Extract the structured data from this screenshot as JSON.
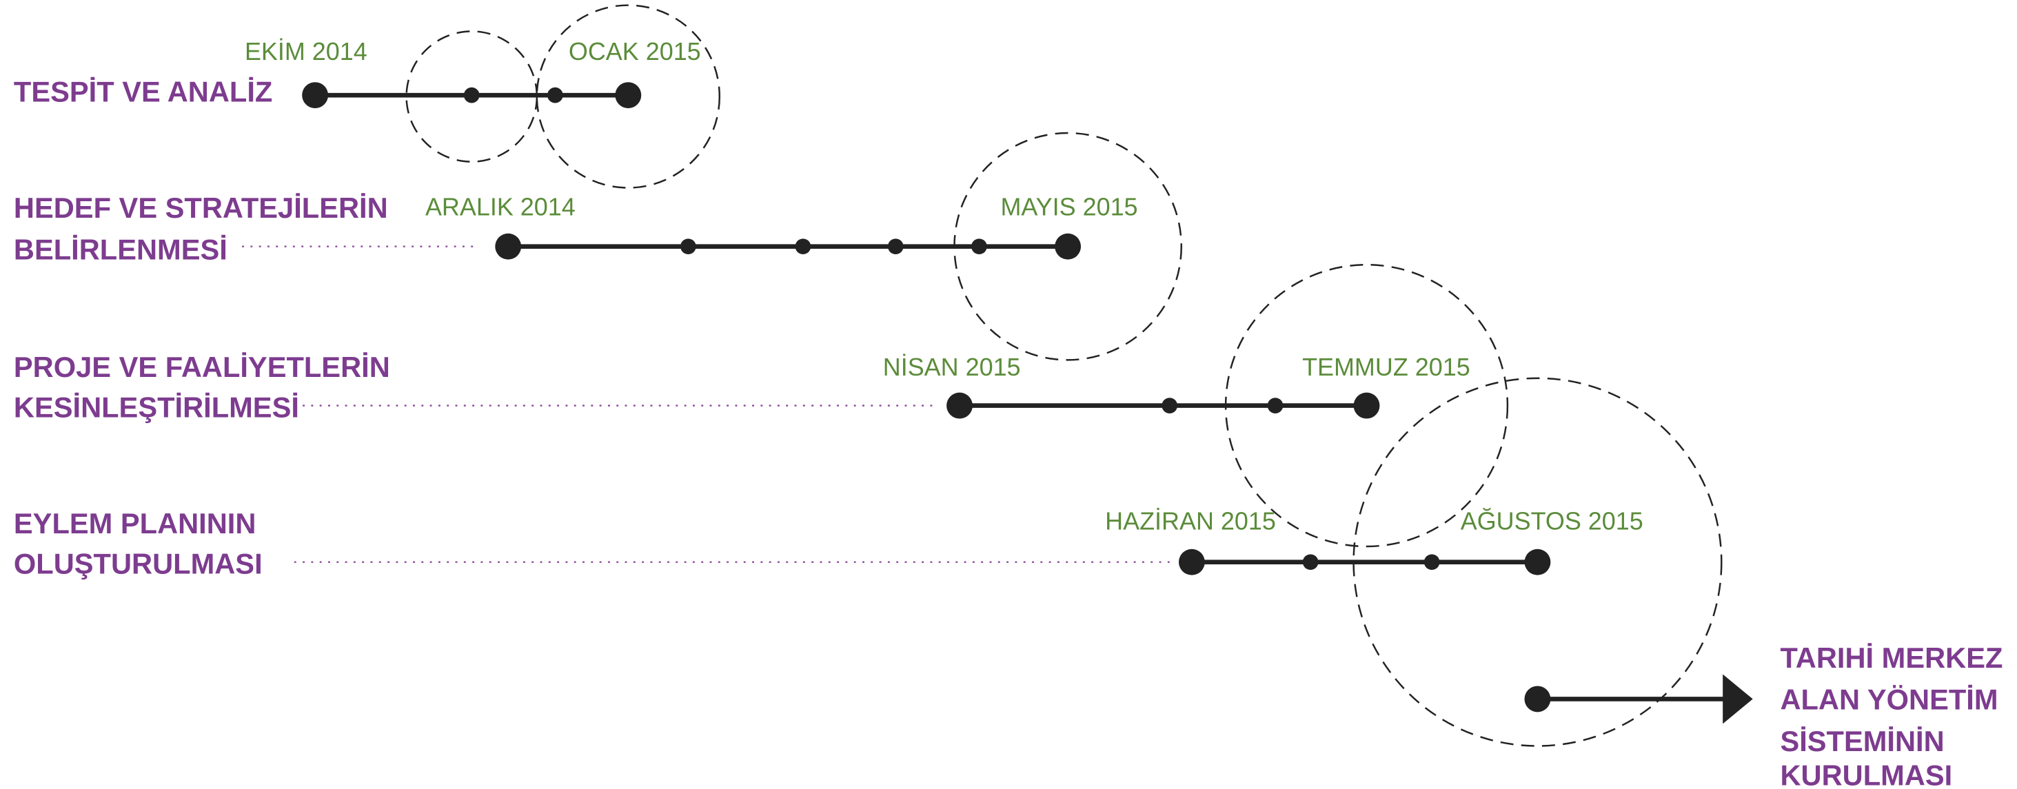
{
  "phases": [
    {
      "label": [
        "TESPİT VE ANALİZ"
      ],
      "start": "EKİM 2014",
      "end": "OCAK 2015"
    },
    {
      "label": [
        "HEDEF VE STRATEJİLERİN",
        "BELİRLENMESİ"
      ],
      "start": "ARALIK 2014",
      "end": "MAYIS 2015"
    },
    {
      "label": [
        "PROJE VE FAALİYETLERİN",
        "KESİNLEŞTİRİLMESİ"
      ],
      "start": "NİSAN 2015",
      "end": "TEMMUZ 2015"
    },
    {
      "label": [
        "EYLEM PLANININ",
        "OLUŞTURULMASI"
      ],
      "start": "HAZİRAN 2015",
      "end": "AĞUSTOS 2015"
    }
  ],
  "goal": [
    "TARIHİ MERKEZ",
    "ALAN YÖNETİM",
    "SİSTEMİNİN",
    "KURULMASI"
  ]
}
